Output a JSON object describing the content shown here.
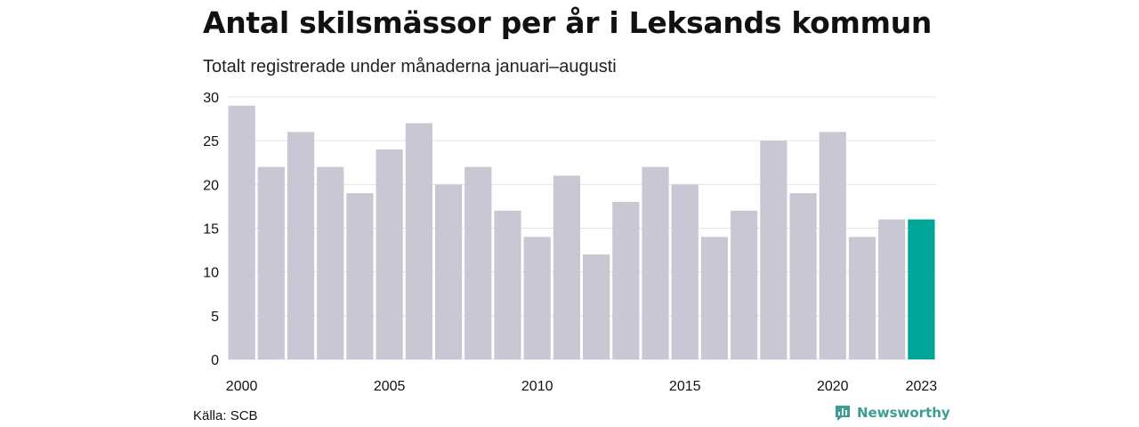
{
  "chart_data": {
    "type": "bar",
    "title": "Antal skilsmässor per år i Leksands kommun",
    "subtitle": "Totalt registrerade under månaderna januari–augusti",
    "categories": [
      "2000",
      "2001",
      "2002",
      "2003",
      "2004",
      "2005",
      "2006",
      "2007",
      "2008",
      "2009",
      "2010",
      "2011",
      "2012",
      "2013",
      "2014",
      "2015",
      "2016",
      "2017",
      "2018",
      "2019",
      "2020",
      "2021",
      "2022",
      "2023"
    ],
    "values": [
      29,
      22,
      26,
      22,
      19,
      24,
      27,
      20,
      22,
      17,
      14,
      21,
      12,
      18,
      22,
      20,
      14,
      17,
      25,
      19,
      26,
      14,
      16,
      16
    ],
    "x_tick_labels": [
      "2000",
      "2005",
      "2010",
      "2015",
      "2020",
      "2023"
    ],
    "y_ticks": [
      0,
      5,
      10,
      15,
      20,
      25,
      30
    ],
    "ylim": [
      0,
      30
    ],
    "grid": true,
    "legend": "none",
    "highlight_category": "2023",
    "colors": {
      "bar": "#c8c7d3",
      "highlight": "#00a599",
      "grid": "#e4e4e4"
    }
  },
  "footer": {
    "source": "Källa: SCB",
    "brand": "Newsworthy",
    "brand_icon": "newsworthy-logo-icon",
    "brand_color": "#3a9e92"
  }
}
